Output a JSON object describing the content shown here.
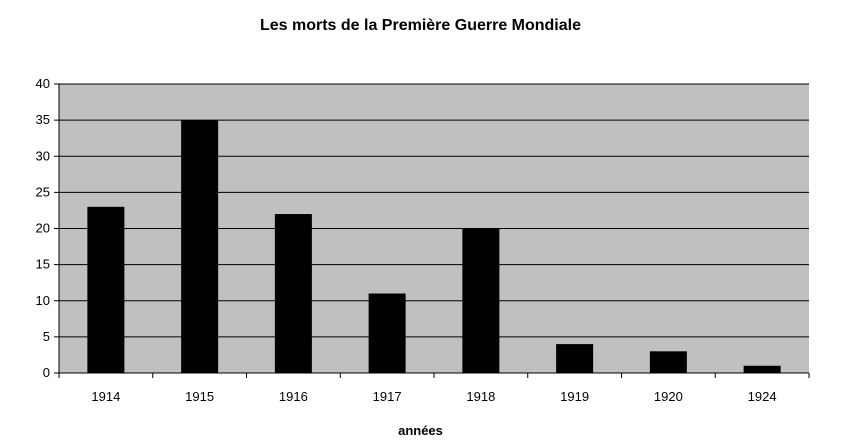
{
  "chart_data": {
    "type": "bar",
    "title": "Les morts de la Première Guerre Mondiale",
    "xlabel": "années",
    "ylabel": "",
    "categories": [
      "1914",
      "1915",
      "1916",
      "1917",
      "1918",
      "1919",
      "1920",
      "1924"
    ],
    "values": [
      23,
      35,
      22,
      11,
      20,
      4,
      3,
      1
    ],
    "ylim": [
      0,
      40
    ],
    "yticks": [
      0,
      5,
      10,
      15,
      20,
      25,
      30,
      35,
      40
    ],
    "grid": true,
    "legend": "none",
    "colors": {
      "bar": "#000000",
      "plot_background": "#c0c0c0",
      "grid": "#000000"
    }
  }
}
